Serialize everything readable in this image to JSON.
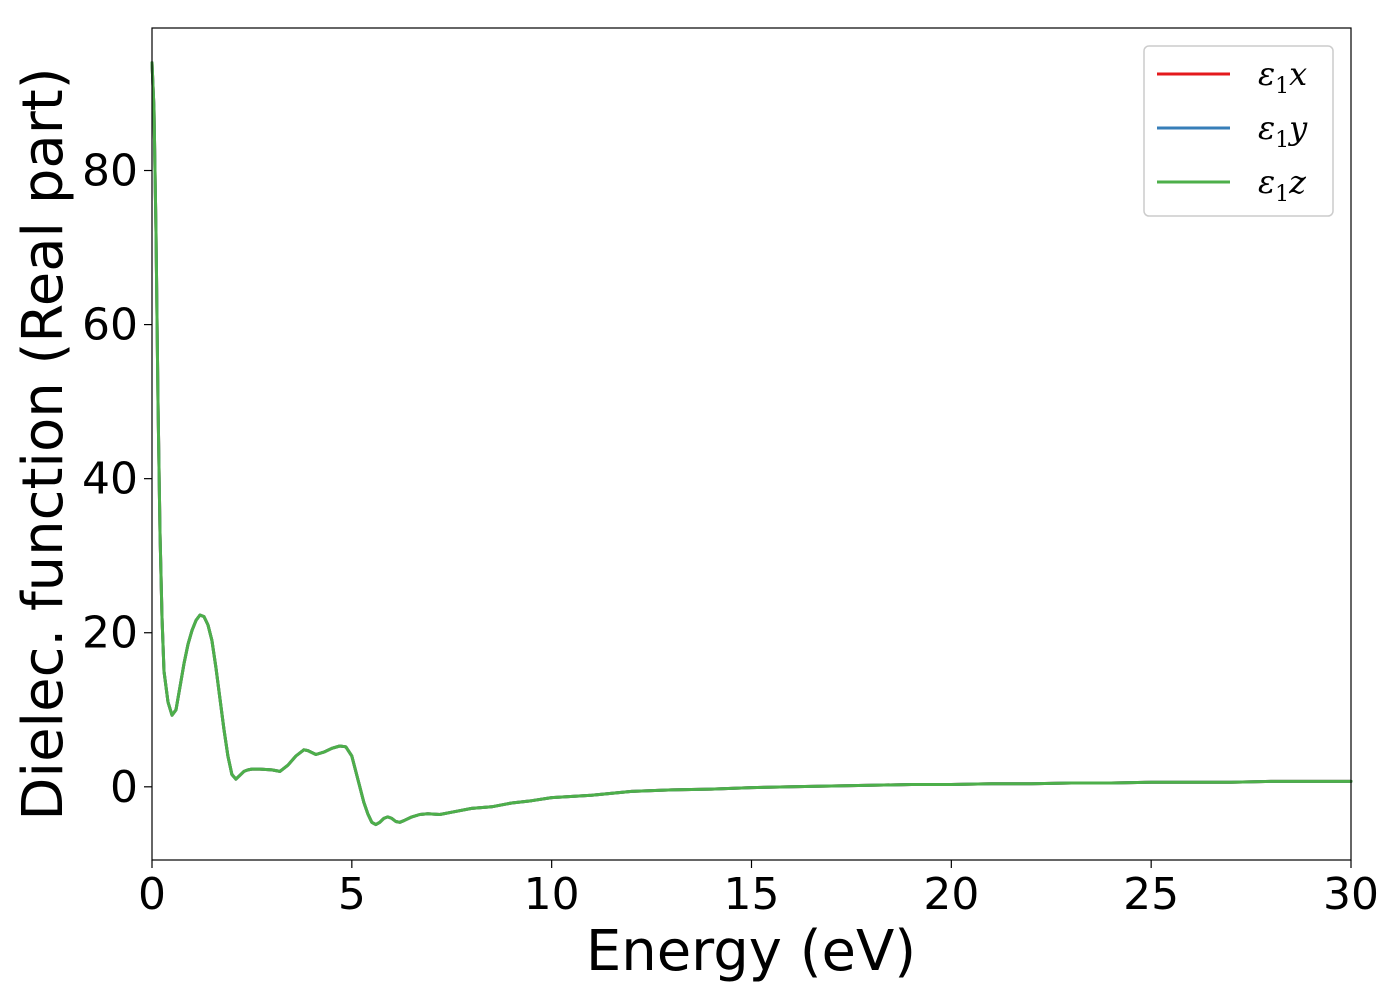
{
  "chart_data": {
    "type": "line",
    "title": "",
    "xlabel": "Energy (eV)",
    "ylabel": "Dielec. function (Real part)",
    "xlim": [
      0,
      30
    ],
    "ylim": [
      -9.5,
      98.5
    ],
    "xticks": [
      0,
      5,
      10,
      15,
      20,
      25,
      30
    ],
    "yticks": [
      0,
      20,
      40,
      60,
      80
    ],
    "grid": false,
    "legend_position": "top-right",
    "legend": [
      {
        "label": "ε₁x",
        "base": "ε",
        "sub": "1",
        "var": "x",
        "color": "#e41a1c"
      },
      {
        "label": "ε₁y",
        "base": "ε",
        "sub": "1",
        "var": "y",
        "color": "#377eb8"
      },
      {
        "label": "ε₁z",
        "base": "ε",
        "sub": "1",
        "var": "z",
        "color": "#4daf4a"
      }
    ],
    "x": [
      0,
      0.05,
      0.1,
      0.15,
      0.2,
      0.25,
      0.3,
      0.4,
      0.5,
      0.6,
      0.7,
      0.8,
      0.9,
      1.0,
      1.1,
      1.2,
      1.3,
      1.4,
      1.5,
      1.6,
      1.7,
      1.8,
      1.9,
      2.0,
      2.1,
      2.2,
      2.3,
      2.4,
      2.5,
      2.7,
      3.0,
      3.2,
      3.4,
      3.6,
      3.8,
      3.9,
      4.1,
      4.3,
      4.5,
      4.7,
      4.85,
      5.0,
      5.1,
      5.2,
      5.3,
      5.4,
      5.5,
      5.6,
      5.7,
      5.8,
      5.9,
      6.0,
      6.1,
      6.2,
      6.3,
      6.5,
      6.7,
      6.9,
      7.2,
      7.5,
      8.0,
      8.5,
      9.0,
      9.5,
      10.0,
      11.0,
      12.0,
      13.0,
      14.0,
      15.0,
      16.0,
      17.0,
      18.0,
      19.0,
      20.0,
      21.0,
      22.0,
      23.0,
      24.0,
      25.0,
      26.0,
      27.0,
      28.0,
      29.0,
      30.0
    ],
    "series": [
      {
        "name": "ε₁x",
        "color": "#e41a1c",
        "values": [
          94,
          88,
          72,
          50,
          33,
          22,
          15,
          11,
          9.3,
          10,
          13,
          16,
          18.5,
          20.3,
          21.6,
          22.3,
          22.1,
          21,
          19,
          15.5,
          11.5,
          7.5,
          4,
          1.6,
          1,
          1.5,
          2,
          2.2,
          2.3,
          2.3,
          2.2,
          2,
          2.8,
          4,
          4.8,
          4.7,
          4.2,
          4.5,
          5,
          5.3,
          5.2,
          4,
          2,
          0,
          -2,
          -3.5,
          -4.6,
          -4.9,
          -4.6,
          -4.1,
          -3.9,
          -4.1,
          -4.5,
          -4.6,
          -4.4,
          -3.9,
          -3.6,
          -3.5,
          -3.6,
          -3.3,
          -2.8,
          -2.6,
          -2.1,
          -1.8,
          -1.4,
          -1.1,
          -0.6,
          -0.4,
          -0.3,
          -0.1,
          0,
          0.1,
          0.2,
          0.3,
          0.3,
          0.4,
          0.4,
          0.5,
          0.5,
          0.6,
          0.6,
          0.6,
          0.7,
          0.7,
          0.7
        ]
      },
      {
        "name": "ε₁y",
        "color": "#377eb8",
        "values": [
          94,
          88,
          72,
          50,
          33,
          22,
          15,
          11,
          9.3,
          10,
          13,
          16,
          18.5,
          20.3,
          21.6,
          22.3,
          22.1,
          21,
          19,
          15.5,
          11.5,
          7.5,
          4,
          1.6,
          1,
          1.5,
          2,
          2.2,
          2.3,
          2.3,
          2.2,
          2,
          2.8,
          4,
          4.8,
          4.7,
          4.2,
          4.5,
          5,
          5.3,
          5.2,
          4,
          2,
          0,
          -2,
          -3.5,
          -4.6,
          -4.9,
          -4.6,
          -4.1,
          -3.9,
          -4.1,
          -4.5,
          -4.6,
          -4.4,
          -3.9,
          -3.6,
          -3.5,
          -3.6,
          -3.3,
          -2.8,
          -2.6,
          -2.1,
          -1.8,
          -1.4,
          -1.1,
          -0.6,
          -0.4,
          -0.3,
          -0.1,
          0,
          0.1,
          0.2,
          0.3,
          0.3,
          0.4,
          0.4,
          0.5,
          0.5,
          0.6,
          0.6,
          0.6,
          0.7,
          0.7,
          0.7
        ]
      },
      {
        "name": "ε₁z",
        "color": "#4daf4a",
        "values": [
          94,
          88,
          72,
          50,
          33,
          22,
          15,
          11,
          9.3,
          10,
          13,
          16,
          18.5,
          20.3,
          21.6,
          22.3,
          22.1,
          21,
          19,
          15.5,
          11.5,
          7.5,
          4,
          1.6,
          1,
          1.5,
          2,
          2.2,
          2.3,
          2.3,
          2.2,
          2,
          2.8,
          4,
          4.8,
          4.7,
          4.2,
          4.5,
          5,
          5.3,
          5.2,
          4,
          2,
          0,
          -2,
          -3.5,
          -4.6,
          -4.9,
          -4.6,
          -4.1,
          -3.9,
          -4.1,
          -4.5,
          -4.6,
          -4.4,
          -3.9,
          -3.6,
          -3.5,
          -3.6,
          -3.3,
          -2.8,
          -2.6,
          -2.1,
          -1.8,
          -1.4,
          -1.1,
          -0.6,
          -0.4,
          -0.3,
          -0.1,
          0,
          0.1,
          0.2,
          0.3,
          0.3,
          0.4,
          0.4,
          0.5,
          0.5,
          0.6,
          0.6,
          0.6,
          0.7,
          0.7,
          0.7
        ]
      }
    ]
  }
}
